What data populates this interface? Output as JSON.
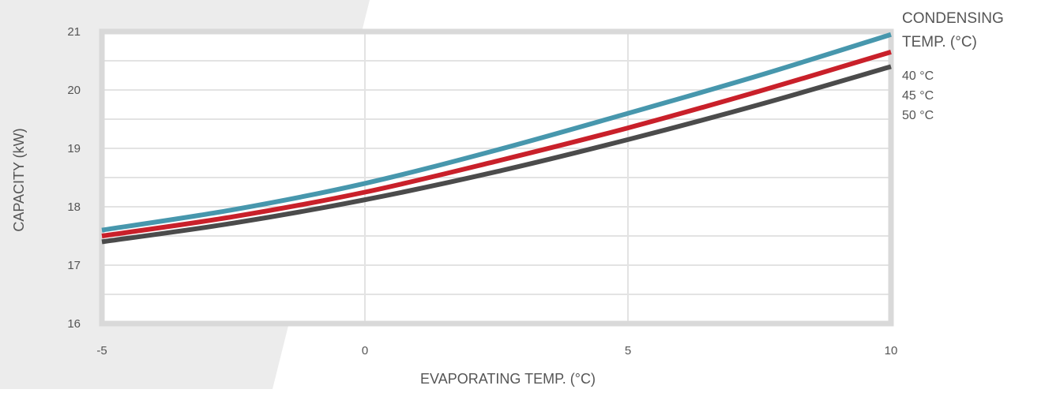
{
  "colors": {
    "background_band": "#ececec",
    "grid": "#e3e3e3",
    "frame": "#d9d9d9",
    "text": "#555555"
  },
  "chart_data": {
    "type": "line",
    "title": "",
    "xlabel": "EVAPORATING TEMP. (°C)",
    "ylabel": "CAPACITY (kW)",
    "xlim": [
      -5,
      10
    ],
    "ylim": [
      16,
      21
    ],
    "x_ticks": [
      -5,
      0,
      5,
      10
    ],
    "y_ticks": [
      16,
      17,
      18,
      19,
      20,
      21
    ],
    "grid": true,
    "legend_title": "CONDENSING TEMP. (°C)",
    "legend_title_lines": [
      "CONDENSING",
      "TEMP. (°C)"
    ],
    "legend_position": "right",
    "x": [
      -5,
      -2.5,
      0,
      2.5,
      5,
      7.5,
      10
    ],
    "series": [
      {
        "name": "40 °C",
        "color": "#4797ad",
        "values": [
          17.6,
          17.95,
          18.4,
          18.97,
          19.6,
          20.25,
          20.95
        ]
      },
      {
        "name": "45 °C",
        "color": "#c9202a",
        "values": [
          17.5,
          17.83,
          18.25,
          18.78,
          19.35,
          19.98,
          20.65
        ]
      },
      {
        "name": "50 °C",
        "color": "#4b4b4b",
        "values": [
          17.4,
          17.72,
          18.12,
          18.6,
          19.15,
          19.75,
          20.4
        ]
      }
    ]
  }
}
